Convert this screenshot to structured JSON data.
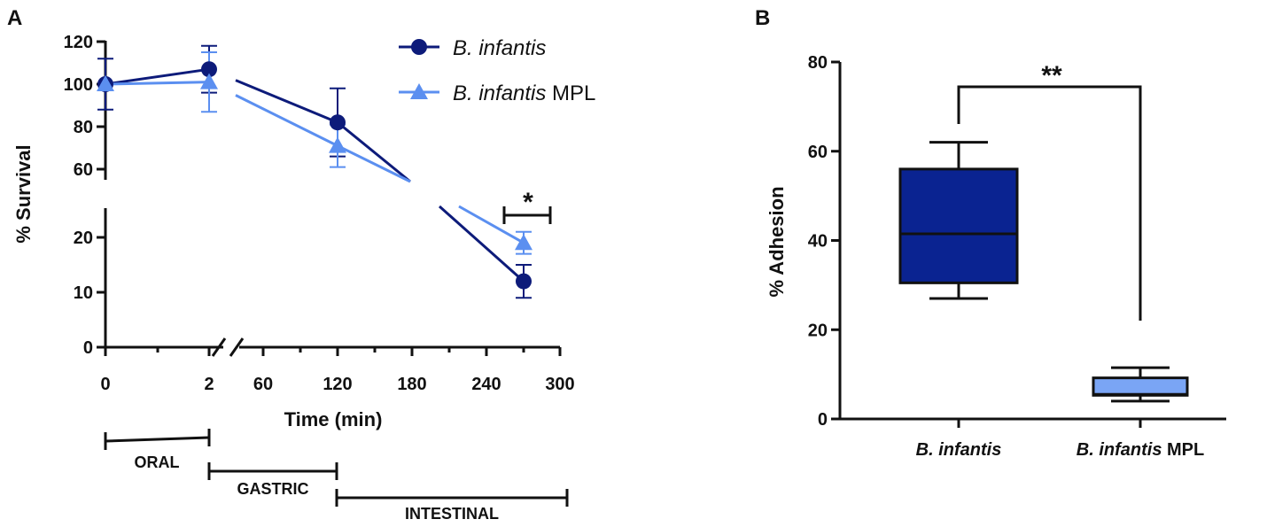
{
  "chart_data": [
    {
      "panel": "A",
      "type": "line",
      "xlabel": "Time (min)",
      "ylabel": "% Survival",
      "x_ticks": [
        "0",
        "2",
        "60",
        "120",
        "180",
        "240",
        "300"
      ],
      "y_ticks_upper": [
        "120",
        "100",
        "80",
        "60"
      ],
      "y_ticks_lower": [
        "20",
        "10",
        "0"
      ],
      "ylim_upper": [
        55,
        120
      ],
      "ylim_lower": [
        0,
        25
      ],
      "xlim": [
        0,
        300
      ],
      "x_break": "2–60",
      "series": [
        {
          "name_italic": "B. infantis",
          "name_suffix": "",
          "color": "#0d1b7a",
          "marker": "circle",
          "x": [
            0,
            2,
            120,
            270
          ],
          "y": [
            100,
            107,
            82,
            12
          ],
          "err": [
            12,
            11,
            16,
            3
          ]
        },
        {
          "name_italic": "B. infantis",
          "name_suffix": " MPL",
          "color": "#5b8ff0",
          "marker": "triangle",
          "x": [
            0,
            2,
            120,
            270
          ],
          "y": [
            100,
            101,
            71,
            19
          ],
          "err": [
            0,
            14,
            10,
            2
          ]
        }
      ],
      "significance": "*",
      "phases": [
        {
          "label": "ORAL"
        },
        {
          "label": "GASTRIC"
        },
        {
          "label": "INTESTINAL"
        }
      ]
    },
    {
      "panel": "B",
      "type": "box",
      "ylabel": "% Adhesion",
      "ylim": [
        0,
        80
      ],
      "y_ticks": [
        "0",
        "20",
        "40",
        "60",
        "80"
      ],
      "categories": [
        {
          "italic": "B. infantis",
          "suffix": ""
        },
        {
          "italic": "B. infantis",
          "suffix": " MPL"
        }
      ],
      "boxes": [
        {
          "min": 27,
          "q1": 30.5,
          "median": 41.5,
          "q3": 56,
          "max": 62,
          "color": "#0a2391"
        },
        {
          "min": 4,
          "q1": 5.3,
          "median": 5.5,
          "q3": 9.2,
          "max": 11.5,
          "color": "#7aa5f5"
        }
      ],
      "significance": "**"
    }
  ]
}
